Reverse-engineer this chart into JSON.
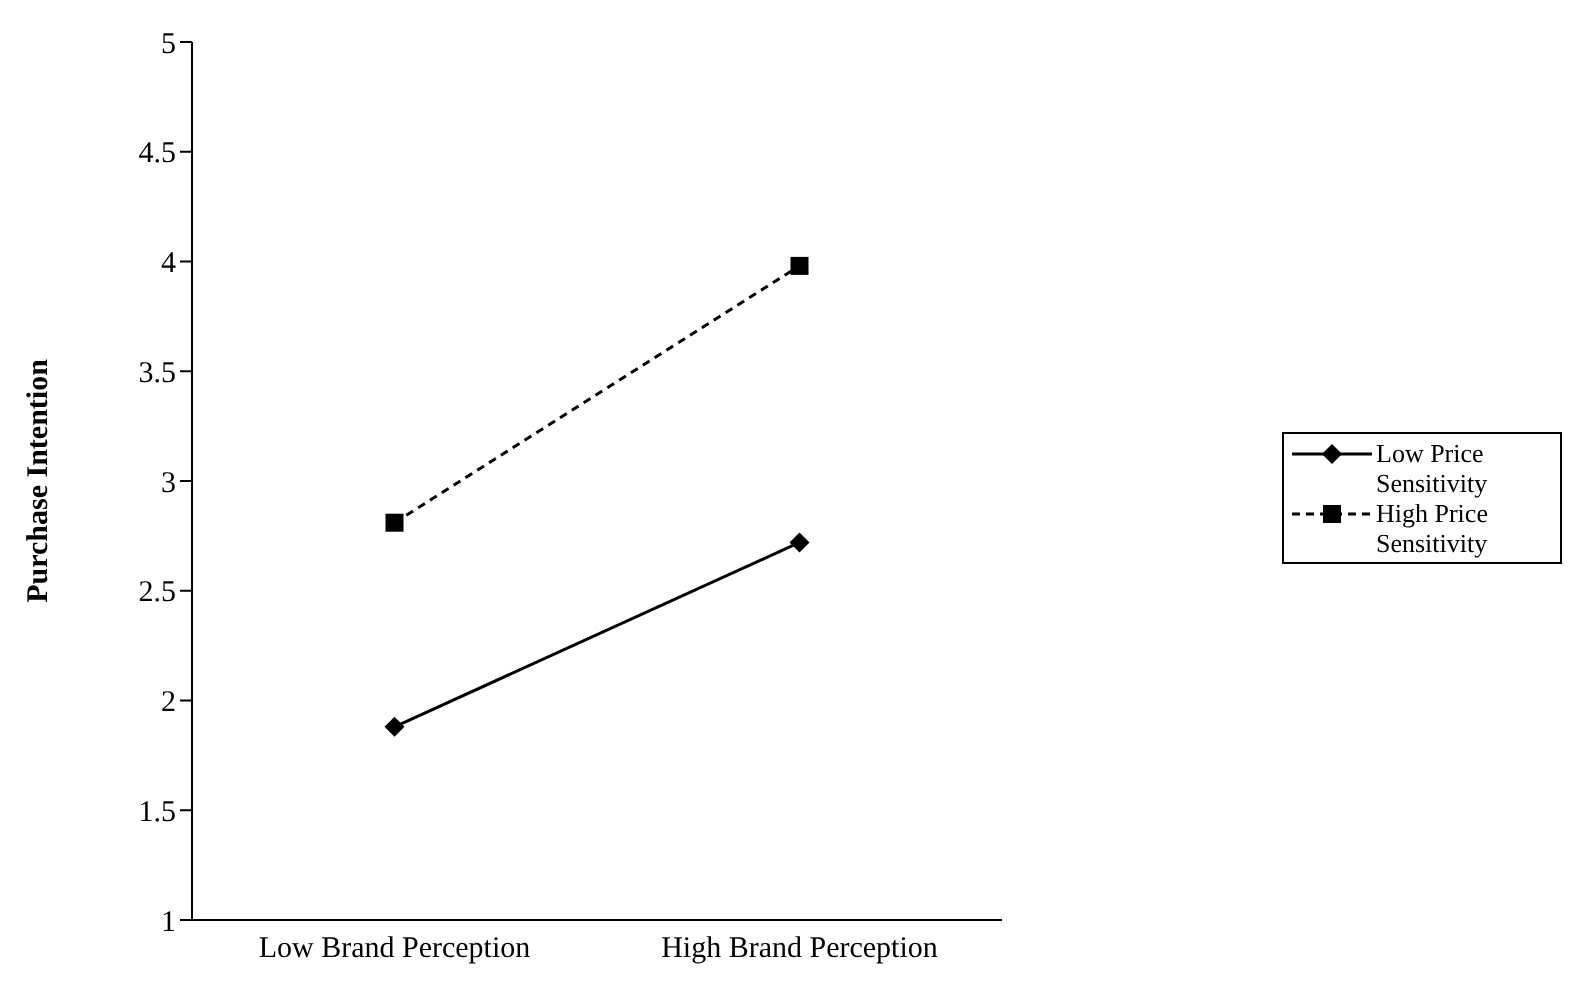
{
  "chart_data": {
    "type": "line",
    "ylabel": "Purchase Intention",
    "categories": [
      "Low Brand Perception",
      "High Brand Perception"
    ],
    "series": [
      {
        "name": "Low Price Sensitivity",
        "color": "#000000",
        "values": [
          1.88,
          2.72
        ],
        "marker": "diamond",
        "line_style": "solid"
      },
      {
        "name": "High Price Sensitivity",
        "color": "#000000",
        "values": [
          2.81,
          3.98
        ],
        "marker": "square",
        "line_style": "dashed"
      }
    ],
    "ylim": [
      1,
      5
    ],
    "yticks": [
      1,
      1.5,
      2,
      2.5,
      3,
      3.5,
      4,
      4.5,
      5
    ],
    "grid": false,
    "legend": "right"
  }
}
